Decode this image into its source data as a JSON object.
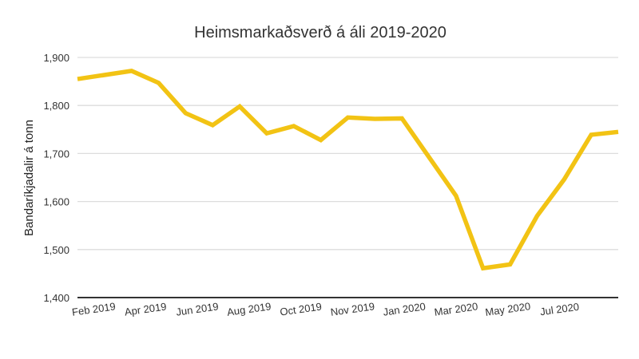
{
  "chart_data": {
    "type": "line",
    "title": "Heimsmarkaðsverð á áli 2019-2020",
    "xlabel": "",
    "ylabel": "Bandaríkjadalir á tonn",
    "ylim": [
      1400,
      1900
    ],
    "yticks": [
      "1,400",
      "1,500",
      "1,600",
      "1,700",
      "1,800",
      "1,900"
    ],
    "ytick_values": [
      1400,
      1500,
      1600,
      1700,
      1800,
      1900
    ],
    "xtick_labels": [
      "Feb 2019",
      "Apr 2019",
      "Jun 2019",
      "Aug 2019",
      "Oct 2019",
      "Nov 2019",
      "Jan 2020",
      "Mar 2020",
      "May 2020",
      "Jul 2020"
    ],
    "grid": true,
    "color": "#F2C314",
    "x": [
      "2019-01",
      "2019-03",
      "2019-04",
      "2019-05",
      "2019-06",
      "2019-07",
      "2019-08",
      "2019-09",
      "2019-10",
      "2019-11",
      "2019-12",
      "2020-01",
      "2020-03",
      "2020-04",
      "2020-05",
      "2020-06",
      "2020-07",
      "2020-08",
      "2020-09"
    ],
    "values": [
      1855,
      1872,
      1847,
      1784,
      1759,
      1798,
      1742,
      1757,
      1728,
      1775,
      1772,
      1773,
      1612,
      1461,
      1469,
      1570,
      1646,
      1739,
      1745
    ]
  }
}
